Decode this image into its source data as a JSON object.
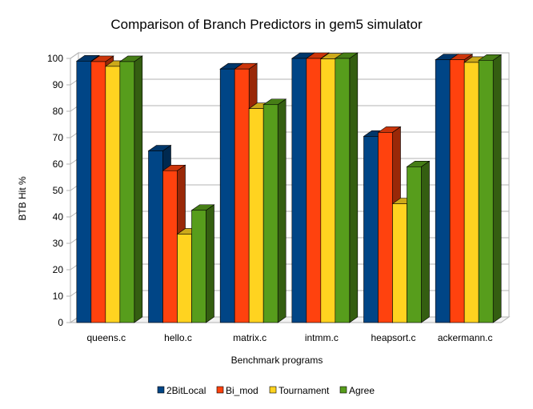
{
  "chart_data": {
    "type": "bar",
    "title": "Comparison of Branch Predictors in gem5 simulator",
    "xlabel": "Benchmark programs",
    "ylabel": "BTB Hit %",
    "ylim": [
      0,
      100
    ],
    "yticks": [
      0,
      10,
      20,
      30,
      40,
      50,
      60,
      70,
      80,
      90,
      100
    ],
    "grid": true,
    "legend_position": "bottom",
    "categories": [
      "queens.c",
      "hello.c",
      "matrix.c",
      "intmm.c",
      "heapsort.c",
      "ackermann.c"
    ],
    "series": [
      {
        "name": "2BitLocal",
        "color": "#004586",
        "values": [
          99,
          65,
          96,
          100,
          70.5,
          99.5
        ]
      },
      {
        "name": "Bi_mod",
        "color": "#ff420e",
        "values": [
          98.8,
          57.5,
          96,
          100,
          72,
          99.5
        ]
      },
      {
        "name": "Tournament",
        "color": "#ffd320",
        "values": [
          97,
          33.5,
          81,
          99.8,
          45,
          98.5
        ]
      },
      {
        "name": "Agree",
        "color": "#579d1c",
        "values": [
          98.8,
          42.5,
          82.5,
          100,
          59,
          99.3
        ]
      }
    ]
  }
}
